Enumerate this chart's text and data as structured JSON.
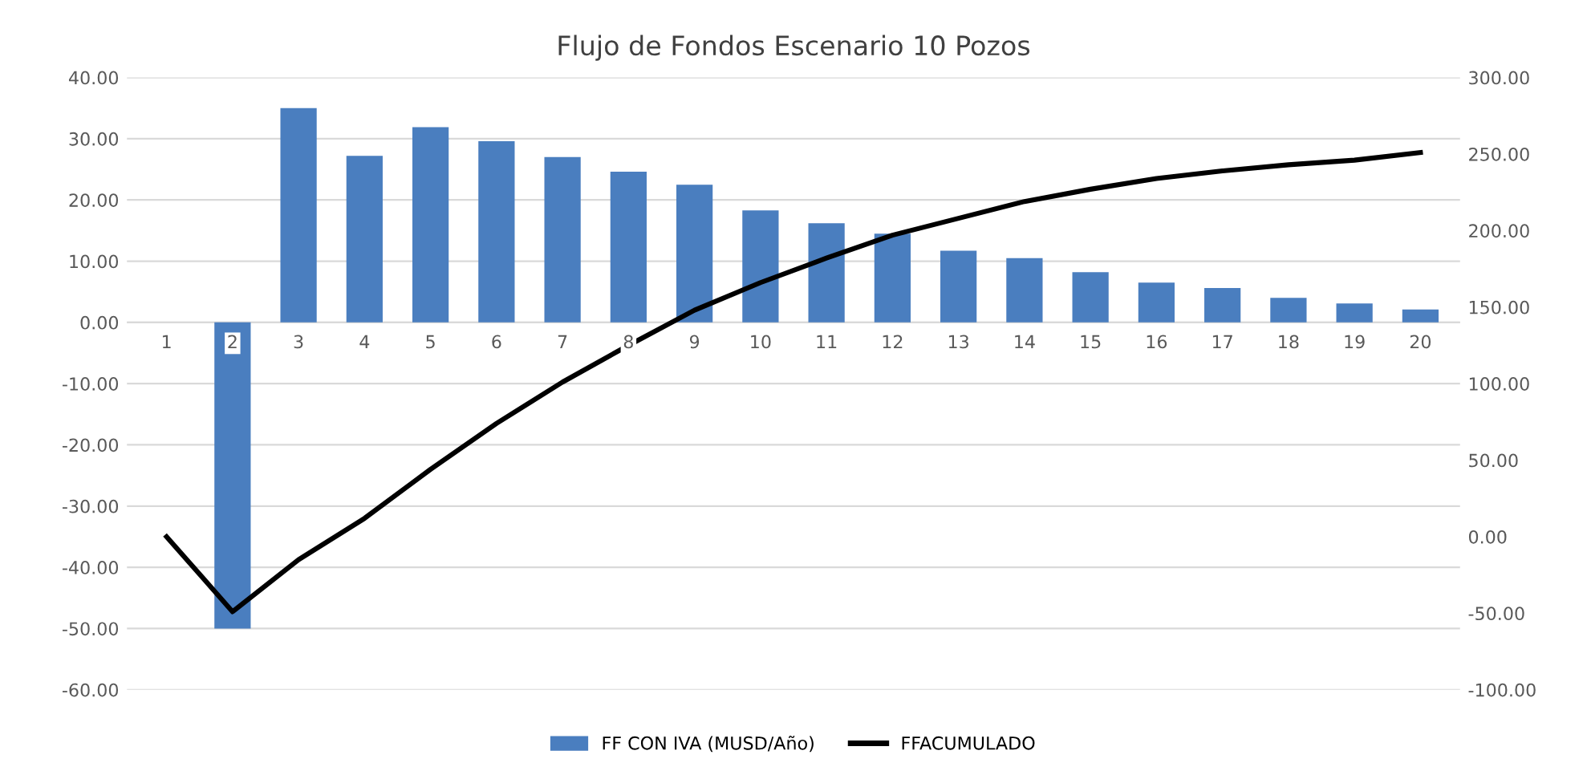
{
  "chart_data": {
    "type": "bar",
    "title": "Flujo de Fondos Escenario 10 Pozos",
    "categories": [
      "1",
      "2",
      "3",
      "4",
      "5",
      "6",
      "7",
      "8",
      "9",
      "10",
      "11",
      "12",
      "13",
      "14",
      "15",
      "16",
      "17",
      "18",
      "19",
      "20"
    ],
    "series": [
      {
        "name": "FF CON IVA (MUSD/Año)",
        "color": "#4a7ebf",
        "values": [
          0,
          -50,
          35,
          27.2,
          31.9,
          29.6,
          27,
          24.6,
          22.5,
          18.3,
          16.2,
          14.5,
          11.7,
          10.5,
          8.2,
          6.5,
          5.6,
          4,
          3.1,
          2.1
        ]
      },
      {
        "name": "FFACUMULADO",
        "type": "line",
        "axis": "y2",
        "color": "#000000",
        "values": [
          0,
          -49,
          -15,
          12,
          44,
          74,
          101,
          125,
          148,
          166,
          182,
          197,
          208,
          219,
          227,
          234,
          239,
          243,
          246,
          251
        ]
      }
    ],
    "ylim": [
      -60,
      40
    ],
    "yticks": [
      {
        "value": 40,
        "label": "40.00"
      },
      {
        "value": 30,
        "label": "30.00"
      },
      {
        "value": 20,
        "label": "20.00"
      },
      {
        "value": 10,
        "label": "10.00"
      },
      {
        "value": 0,
        "label": "0.00"
      },
      {
        "value": -10,
        "label": "-10.00"
      },
      {
        "value": -20,
        "label": "-20.00"
      },
      {
        "value": -30,
        "label": "-30.00"
      },
      {
        "value": -40,
        "label": "-40.00"
      },
      {
        "value": -50,
        "label": "-50.00"
      },
      {
        "value": -60,
        "label": "-60.00"
      }
    ],
    "y2lim": [
      -100,
      300
    ],
    "y2ticks": [
      {
        "value": 300,
        "label": "300.00"
      },
      {
        "value": 250,
        "label": "250.00"
      },
      {
        "value": 200,
        "label": "200.00"
      },
      {
        "value": 150,
        "label": "150.00"
      },
      {
        "value": 100,
        "label": "100.00"
      },
      {
        "value": 50,
        "label": "50.00"
      },
      {
        "value": 0,
        "label": "0.00"
      },
      {
        "value": -50,
        "label": "-50.00"
      },
      {
        "value": -100,
        "label": "-100.00"
      }
    ],
    "grid": "y",
    "legend": "bottom",
    "marker": "none",
    "line_style": "solid"
  }
}
